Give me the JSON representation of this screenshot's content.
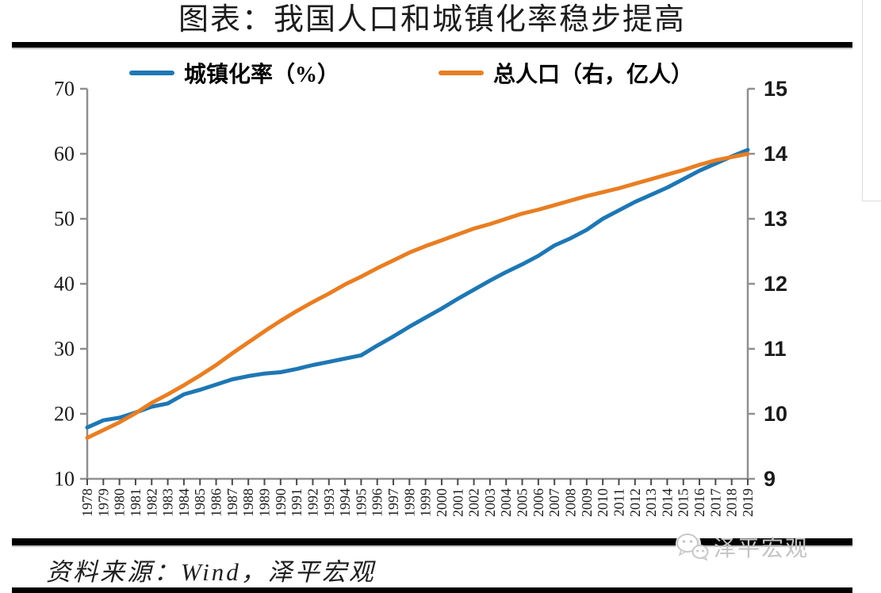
{
  "title": "图表：我国人口和城镇化率稳步提高",
  "legend": [
    {
      "label": "城镇化率（%）",
      "color": "#1E77B4"
    },
    {
      "label": "总人口（右，亿人）",
      "color": "#E87E23"
    }
  ],
  "source_note": "资料来源：Wind，泽平宏观",
  "watermark": {
    "text": "泽平宏观",
    "icon": "wechat-icon",
    "color": "#c4c4c4"
  },
  "colors": {
    "series_blue": "#1E77B4",
    "series_orange": "#E87E23",
    "axis_line": "#8f8f8f",
    "x_tick": "#4a4a4a",
    "tick_label": "#1a1a1a",
    "divider": "#000000"
  },
  "chart_data": {
    "type": "line",
    "title": "图表：我国人口和城镇化率稳步提高",
    "x": [
      1978,
      1979,
      1980,
      1981,
      1982,
      1983,
      1984,
      1985,
      1986,
      1987,
      1988,
      1989,
      1990,
      1991,
      1992,
      1993,
      1994,
      1995,
      1996,
      1997,
      1998,
      1999,
      2000,
      2001,
      2002,
      2003,
      2004,
      2005,
      2006,
      2007,
      2008,
      2009,
      2010,
      2011,
      2012,
      2013,
      2014,
      2015,
      2016,
      2017,
      2018,
      2019
    ],
    "series": [
      {
        "name": "城镇化率（%）",
        "axis": "left",
        "color": "#1E77B4",
        "values": [
          17.9,
          19.0,
          19.4,
          20.2,
          21.1,
          21.6,
          23.0,
          23.7,
          24.5,
          25.3,
          25.8,
          26.2,
          26.4,
          26.9,
          27.5,
          28.0,
          28.5,
          29.0,
          30.5,
          31.9,
          33.4,
          34.8,
          36.2,
          37.7,
          39.1,
          40.5,
          41.8,
          43.0,
          44.3,
          45.9,
          47.0,
          48.3,
          50.0,
          51.3,
          52.6,
          53.7,
          54.8,
          56.1,
          57.4,
          58.5,
          59.6,
          60.6
        ]
      },
      {
        "name": "总人口（右，亿人）",
        "axis": "right",
        "color": "#E87E23",
        "values": [
          9.63,
          9.75,
          9.87,
          10.01,
          10.17,
          10.3,
          10.44,
          10.59,
          10.75,
          10.93,
          11.1,
          11.27,
          11.43,
          11.58,
          11.72,
          11.85,
          11.99,
          12.11,
          12.24,
          12.36,
          12.48,
          12.58,
          12.67,
          12.76,
          12.85,
          12.92,
          13.0,
          13.08,
          13.14,
          13.21,
          13.28,
          13.35,
          13.41,
          13.47,
          13.54,
          13.61,
          13.68,
          13.75,
          13.83,
          13.9,
          13.95,
          14.0
        ]
      }
    ],
    "left_axis": {
      "range": [
        10,
        70
      ],
      "ticks": [
        10,
        20,
        30,
        40,
        50,
        60,
        70
      ]
    },
    "right_axis": {
      "range": [
        9,
        15
      ],
      "ticks": [
        9,
        10,
        11,
        12,
        13,
        14,
        15
      ]
    },
    "xlabel": "",
    "ylabel_left": "城镇化率（%）",
    "ylabel_right": "总人口（亿人）",
    "grid": false,
    "legend_position": "top"
  }
}
